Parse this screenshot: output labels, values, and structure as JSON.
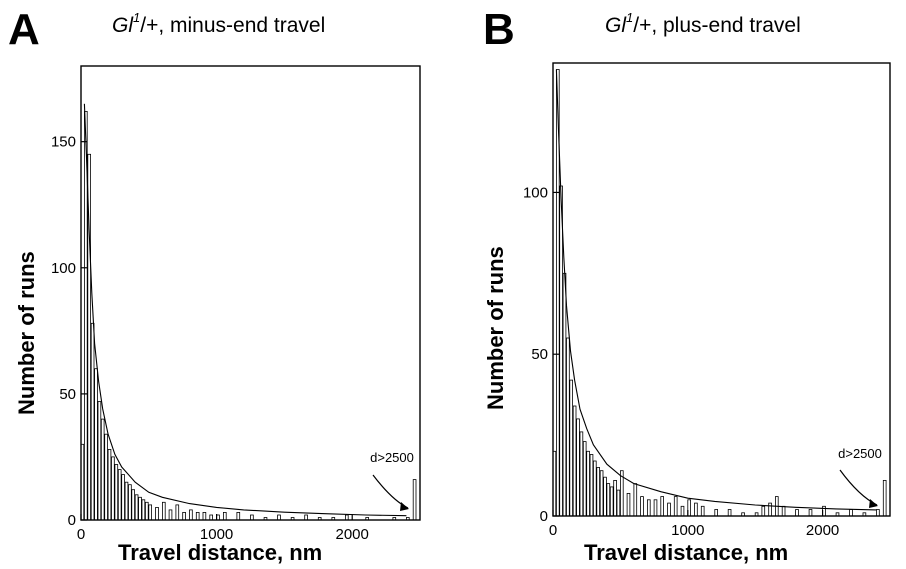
{
  "chart_data": [
    {
      "panel_label": "A",
      "type": "bar",
      "title_italic": "Gl",
      "title_sup": "1",
      "title_rest": "/+, minus-end travel",
      "xlabel": "Travel distance, nm",
      "ylabel": "Number of runs",
      "xlim": [
        0,
        2500
      ],
      "ylim": [
        0,
        180
      ],
      "xticks": [
        0,
        1000,
        2000
      ],
      "yticks": [
        0,
        50,
        100,
        150
      ],
      "annotation": "d>2500",
      "bin_width": 25,
      "bins_start": [
        0,
        25,
        50,
        75,
        100,
        125,
        150,
        175,
        200,
        225,
        250,
        275,
        300,
        325,
        350,
        375,
        400,
        425,
        450,
        475,
        500,
        550,
        600,
        650,
        700,
        750,
        800,
        850,
        900,
        950,
        1000,
        1050,
        1150,
        1250,
        1350,
        1450,
        1550,
        1650,
        1750,
        1850,
        1950,
        2100,
        2300,
        2400,
        2450
      ],
      "values": [
        30,
        162,
        145,
        78,
        60,
        47,
        40,
        34,
        28,
        25,
        22,
        20,
        18,
        15,
        14,
        12,
        10,
        9,
        8,
        7,
        6,
        5,
        7,
        4,
        6,
        3,
        4,
        3,
        3,
        2,
        2,
        3,
        3,
        2,
        1,
        2,
        1,
        2,
        1,
        1,
        2,
        1,
        1,
        1,
        16
      ],
      "fit_curve": {
        "x": [
          25,
          40,
          60,
          80,
          100,
          130,
          160,
          200,
          250,
          300,
          400,
          500,
          600,
          800,
          1000,
          1200,
          1500,
          1800,
          2100,
          2400
        ],
        "y": [
          165,
          145,
          115,
          90,
          70,
          55,
          44,
          34,
          26,
          21,
          15,
          11,
          9,
          6.5,
          5,
          4,
          3.1,
          2.5,
          2.0,
          1.7
        ]
      }
    },
    {
      "panel_label": "B",
      "type": "bar",
      "title_italic": "Gl",
      "title_sup": "1",
      "title_rest": "/+, plus-end travel",
      "xlabel": "Travel distance, nm",
      "ylabel": "Number of runs",
      "xlim": [
        0,
        2500
      ],
      "ylim": [
        0,
        140
      ],
      "xticks": [
        0,
        1000,
        2000
      ],
      "yticks": [
        0,
        50,
        100
      ],
      "annotation": "d>2500",
      "bin_width": 25,
      "bins_start": [
        0,
        25,
        50,
        75,
        100,
        125,
        150,
        175,
        200,
        225,
        250,
        275,
        300,
        325,
        350,
        375,
        400,
        425,
        450,
        475,
        500,
        550,
        600,
        650,
        700,
        750,
        800,
        850,
        900,
        950,
        1000,
        1050,
        1100,
        1200,
        1300,
        1400,
        1500,
        1550,
        1600,
        1650,
        1700,
        1800,
        1900,
        2000,
        2100,
        2200,
        2300,
        2400,
        2450
      ],
      "values": [
        20,
        138,
        102,
        75,
        55,
        42,
        34,
        30,
        26,
        23,
        20,
        19,
        17,
        15,
        14,
        12,
        10,
        9,
        11,
        8,
        14,
        7,
        10,
        6,
        5,
        5,
        6,
        4,
        6,
        3,
        5,
        4,
        3,
        2,
        2,
        1,
        1,
        3,
        4,
        6,
        3,
        2,
        2,
        3,
        1,
        2,
        1,
        2,
        11
      ],
      "fit_curve": {
        "x": [
          25,
          40,
          60,
          80,
          100,
          130,
          160,
          200,
          250,
          300,
          400,
          500,
          600,
          800,
          1000,
          1200,
          1500,
          1800,
          2100,
          2400
        ],
        "y": [
          138,
          120,
          98,
          80,
          65,
          51,
          42,
          33,
          27,
          22,
          16,
          12.5,
          10,
          7.5,
          5.5,
          4.5,
          3.4,
          2.7,
          2.2,
          1.9
        ]
      }
    }
  ]
}
